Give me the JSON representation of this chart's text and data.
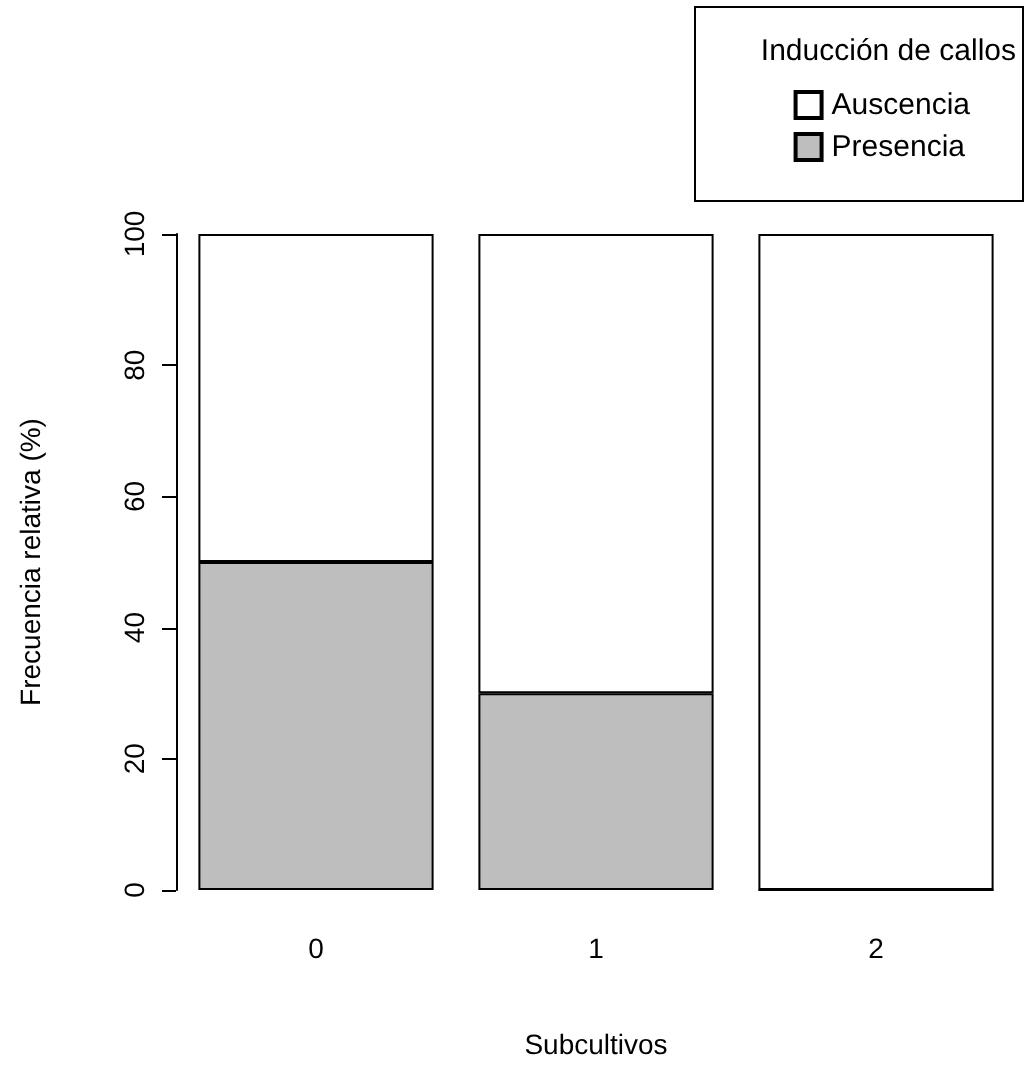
{
  "chart_data": {
    "type": "bar",
    "stacked": true,
    "xlabel": "Subcultivos",
    "ylabel": "Frecuencia relativa (%)",
    "legend_title": "Inducción de callos",
    "legend": "top right",
    "grid": false,
    "categories": [
      "0",
      "1",
      "2"
    ],
    "series": [
      {
        "name": "Presencia",
        "color": "#bebebe",
        "values": [
          50,
          30,
          0
        ]
      },
      {
        "name": "Auscencia",
        "color": "#ffffff",
        "values": [
          50,
          70,
          100
        ]
      }
    ],
    "ylim": [
      0,
      100
    ],
    "yticks": [
      0,
      20,
      40,
      60,
      80,
      100
    ]
  }
}
